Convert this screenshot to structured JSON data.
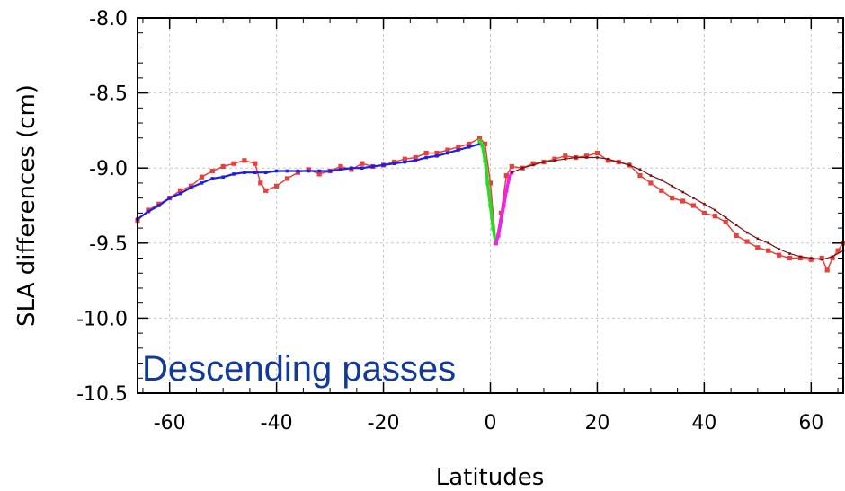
{
  "chart_data": {
    "type": "line",
    "title": "",
    "xlabel": "Latitudes",
    "ylabel": "SLA differences (cm)",
    "xlim": [
      -66,
      66
    ],
    "ylim": [
      -10.5,
      -8.0
    ],
    "xticks": [
      -60,
      -40,
      -20,
      0,
      20,
      40,
      60
    ],
    "xtick_labels": [
      "-60",
      "-40",
      "-20",
      "0",
      "20",
      "40",
      "60"
    ],
    "yticks": [
      -8.0,
      -8.5,
      -9.0,
      -9.5,
      -10.0,
      -10.5
    ],
    "ytick_labels": [
      "-8.0",
      "-8.5",
      "-9.0",
      "-9.5",
      "-10.0",
      "-10.5"
    ],
    "grid": true,
    "annotation": "Descending passes",
    "colors": {
      "observed": "#e8403c",
      "fit_south": "#1e1ee6",
      "fit_equator_south": "#22dd22",
      "fit_equator_north": "#ee22ee",
      "fit_north": "#7a1010",
      "annotation": "#123a9a"
    },
    "series": [
      {
        "key": "observed",
        "x": [
          -66,
          -64,
          -62,
          -60,
          -58,
          -56,
          -54,
          -52,
          -50,
          -48,
          -46,
          -44,
          -43,
          -42,
          -40,
          -38,
          -36,
          -34,
          -32,
          -30,
          -28,
          -26,
          -24,
          -22,
          -20,
          -18,
          -16,
          -14,
          -12,
          -10,
          -8,
          -6,
          -4,
          -2,
          -1,
          0,
          1,
          2,
          3,
          4,
          6,
          8,
          10,
          12,
          14,
          16,
          18,
          20,
          22,
          24,
          26,
          28,
          30,
          32,
          34,
          36,
          38,
          40,
          42,
          44,
          46,
          48,
          50,
          52,
          54,
          56,
          58,
          60,
          62,
          63,
          64,
          65,
          66
        ],
        "y": [
          -9.35,
          -9.28,
          -9.24,
          -9.2,
          -9.15,
          -9.12,
          -9.06,
          -9.02,
          -8.99,
          -8.97,
          -8.95,
          -8.97,
          -9.1,
          -9.15,
          -9.12,
          -9.07,
          -9.03,
          -9.01,
          -9.04,
          -9.02,
          -8.99,
          -9.01,
          -8.97,
          -8.99,
          -8.98,
          -8.96,
          -8.94,
          -8.93,
          -8.9,
          -8.9,
          -8.88,
          -8.86,
          -8.84,
          -8.8,
          -8.84,
          -9.1,
          -9.5,
          -9.3,
          -9.05,
          -8.99,
          -9.0,
          -8.97,
          -8.96,
          -8.94,
          -8.92,
          -8.93,
          -8.92,
          -8.9,
          -8.95,
          -8.96,
          -8.98,
          -9.05,
          -9.1,
          -9.15,
          -9.2,
          -9.22,
          -9.25,
          -9.3,
          -9.32,
          -9.36,
          -9.45,
          -9.49,
          -9.53,
          -9.55,
          -9.58,
          -9.6,
          -9.6,
          -9.61,
          -9.6,
          -9.68,
          -9.6,
          -9.55,
          -9.5
        ]
      },
      {
        "key": "fit_south",
        "x": [
          -66,
          -64,
          -62,
          -60,
          -58,
          -56,
          -54,
          -52,
          -50,
          -48,
          -46,
          -44,
          -42,
          -40,
          -38,
          -36,
          -34,
          -32,
          -30,
          -28,
          -26,
          -24,
          -22,
          -20,
          -18,
          -16,
          -14,
          -12,
          -10,
          -8,
          -6,
          -4,
          -2
        ],
        "y": [
          -9.34,
          -9.29,
          -9.25,
          -9.2,
          -9.17,
          -9.13,
          -9.1,
          -9.07,
          -9.06,
          -9.04,
          -9.03,
          -9.03,
          -9.03,
          -9.02,
          -9.02,
          -9.02,
          -9.02,
          -9.02,
          -9.02,
          -9.01,
          -9.0,
          -9.0,
          -8.99,
          -8.98,
          -8.97,
          -8.96,
          -8.95,
          -8.93,
          -8.92,
          -8.9,
          -8.88,
          -8.86,
          -8.84
        ]
      },
      {
        "key": "fit_equator_south",
        "x": [
          -2,
          -1.5,
          -1,
          -0.5,
          0,
          0.5,
          1
        ],
        "y": [
          -8.82,
          -8.85,
          -8.95,
          -9.1,
          -9.25,
          -9.4,
          -9.5
        ]
      },
      {
        "key": "fit_equator_north",
        "x": [
          1,
          1.5,
          2,
          2.5,
          3,
          3.5,
          4
        ],
        "y": [
          -9.5,
          -9.45,
          -9.35,
          -9.25,
          -9.15,
          -9.07,
          -9.03
        ]
      },
      {
        "key": "fit_north",
        "x": [
          4,
          6,
          8,
          10,
          12,
          14,
          16,
          18,
          20,
          22,
          24,
          26,
          28,
          30,
          32,
          34,
          36,
          38,
          40,
          42,
          44,
          46,
          48,
          50,
          52,
          54,
          56,
          58,
          60,
          62,
          64,
          66
        ],
        "y": [
          -9.03,
          -9.0,
          -8.98,
          -8.96,
          -8.95,
          -8.94,
          -8.93,
          -8.93,
          -8.93,
          -8.94,
          -8.96,
          -8.98,
          -9.01,
          -9.05,
          -9.08,
          -9.12,
          -9.16,
          -9.2,
          -9.24,
          -9.28,
          -9.33,
          -9.38,
          -9.43,
          -9.47,
          -9.5,
          -9.54,
          -9.57,
          -9.59,
          -9.6,
          -9.61,
          -9.59,
          -9.55
        ]
      }
    ]
  }
}
